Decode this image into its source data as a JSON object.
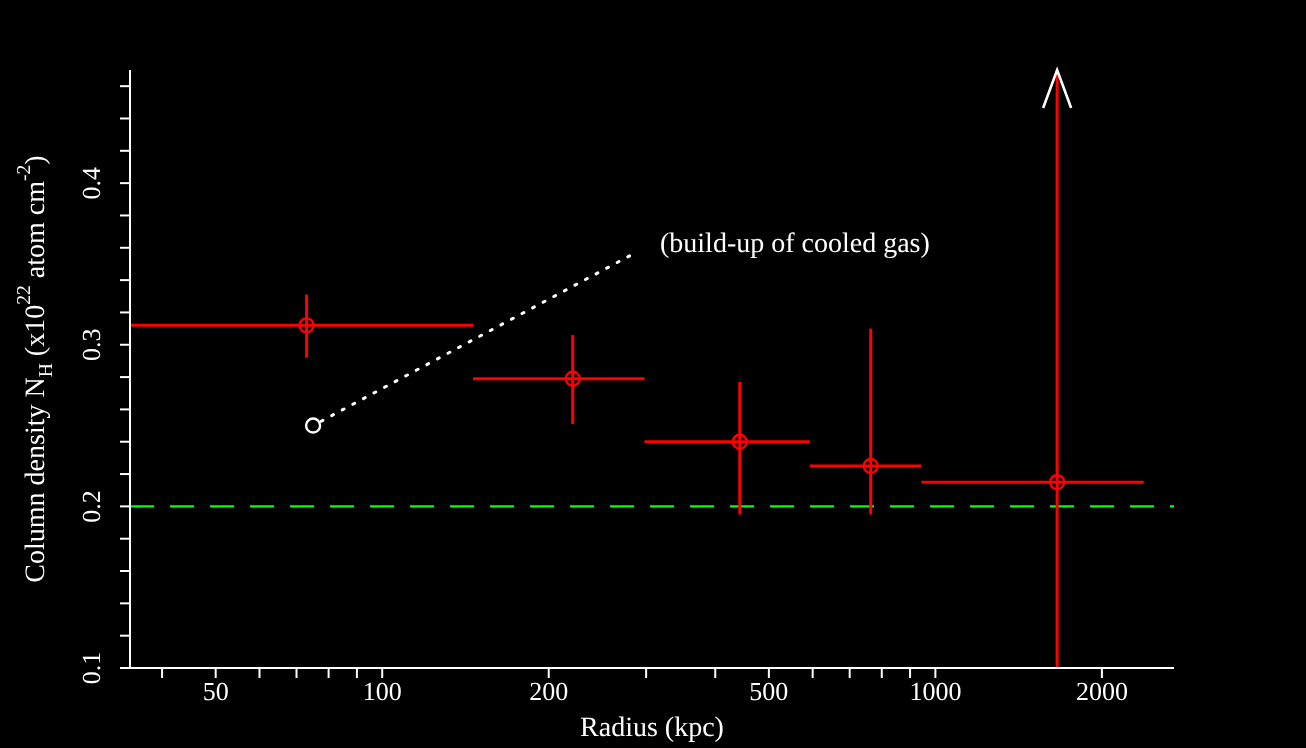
{
  "chart_data": {
    "type": "scatter",
    "xlabel": "Radius (kpc)",
    "ylabel": "Column density N$_{H}$ (x10$^{22}$ atom cm$^{-2}$)",
    "log": "x",
    "xlim": [
      35,
      2700
    ],
    "xticks": [
      {
        "value": 40,
        "label": null
      },
      50,
      {
        "value": 60,
        "label": null
      },
      {
        "value": 70,
        "label": null
      },
      {
        "value": 80,
        "label": null
      },
      {
        "value": 90,
        "label": null
      },
      100,
      200,
      {
        "value": 300,
        "label": null
      },
      {
        "value": 400,
        "label": null
      },
      500,
      {
        "value": 600,
        "label": null
      },
      {
        "value": 700,
        "label": null
      },
      {
        "value": 800,
        "label": null
      },
      {
        "value": 900,
        "label": null
      },
      1000,
      2000
    ],
    "ylim": [
      0.1,
      0.47
    ],
    "yticks": [
      0.1,
      {
        "value": 0.12,
        "label": null
      },
      {
        "value": 0.14,
        "label": null
      },
      {
        "value": 0.16,
        "label": null
      },
      {
        "value": 0.18,
        "label": null
      },
      0.2,
      {
        "value": 0.22,
        "label": null
      },
      {
        "value": 0.24,
        "label": null
      },
      {
        "value": 0.26,
        "label": null
      },
      {
        "value": 0.28,
        "label": null
      },
      0.3,
      {
        "value": 0.32,
        "label": null
      },
      {
        "value": 0.34,
        "label": null
      },
      {
        "value": 0.36,
        "label": null
      },
      {
        "value": 0.38,
        "label": null
      },
      0.4,
      {
        "value": 0.42,
        "label": null
      },
      {
        "value": 0.44,
        "label": null
      },
      {
        "value": 0.46,
        "label": null
      }
    ],
    "marker": "circle",
    "series": [
      {
        "color": "#ff0000",
        "x": [
          73,
          221,
          443,
          764,
          1660
        ],
        "values": [
          0.312,
          0.279,
          0.24,
          0.225,
          0.215
        ],
        "errors": [
          [
            0.292,
            0.331
          ],
          [
            0.251,
            0.306
          ],
          [
            0.195,
            0.277
          ],
          [
            0.195,
            0.31
          ],
          [
            0.1,
            0.47
          ]
        ],
        "xerrors": [
          [
            35,
            146
          ],
          [
            146,
            298
          ],
          [
            298,
            593
          ],
          [
            593,
            944
          ],
          [
            944,
            2380
          ]
        ]
      },
      {
        "type": "scatter",
        "color": "#ffffff",
        "x": [
          75
        ],
        "values": [
          0.25
        ]
      },
      {
        "type": "line",
        "color": "#ffffff",
        "marker": "none",
        "line_style": "dotted",
        "x": [
          280,
          75
        ],
        "values": [
          0.355,
          0.25
        ]
      }
    ],
    "ref_lines": [
      {
        "axis": "y",
        "value": 0.2,
        "color": "#00ff00",
        "line_style": "dashed"
      }
    ],
    "annotations": [
      "(build-up of cooled gas)"
    ]
  }
}
